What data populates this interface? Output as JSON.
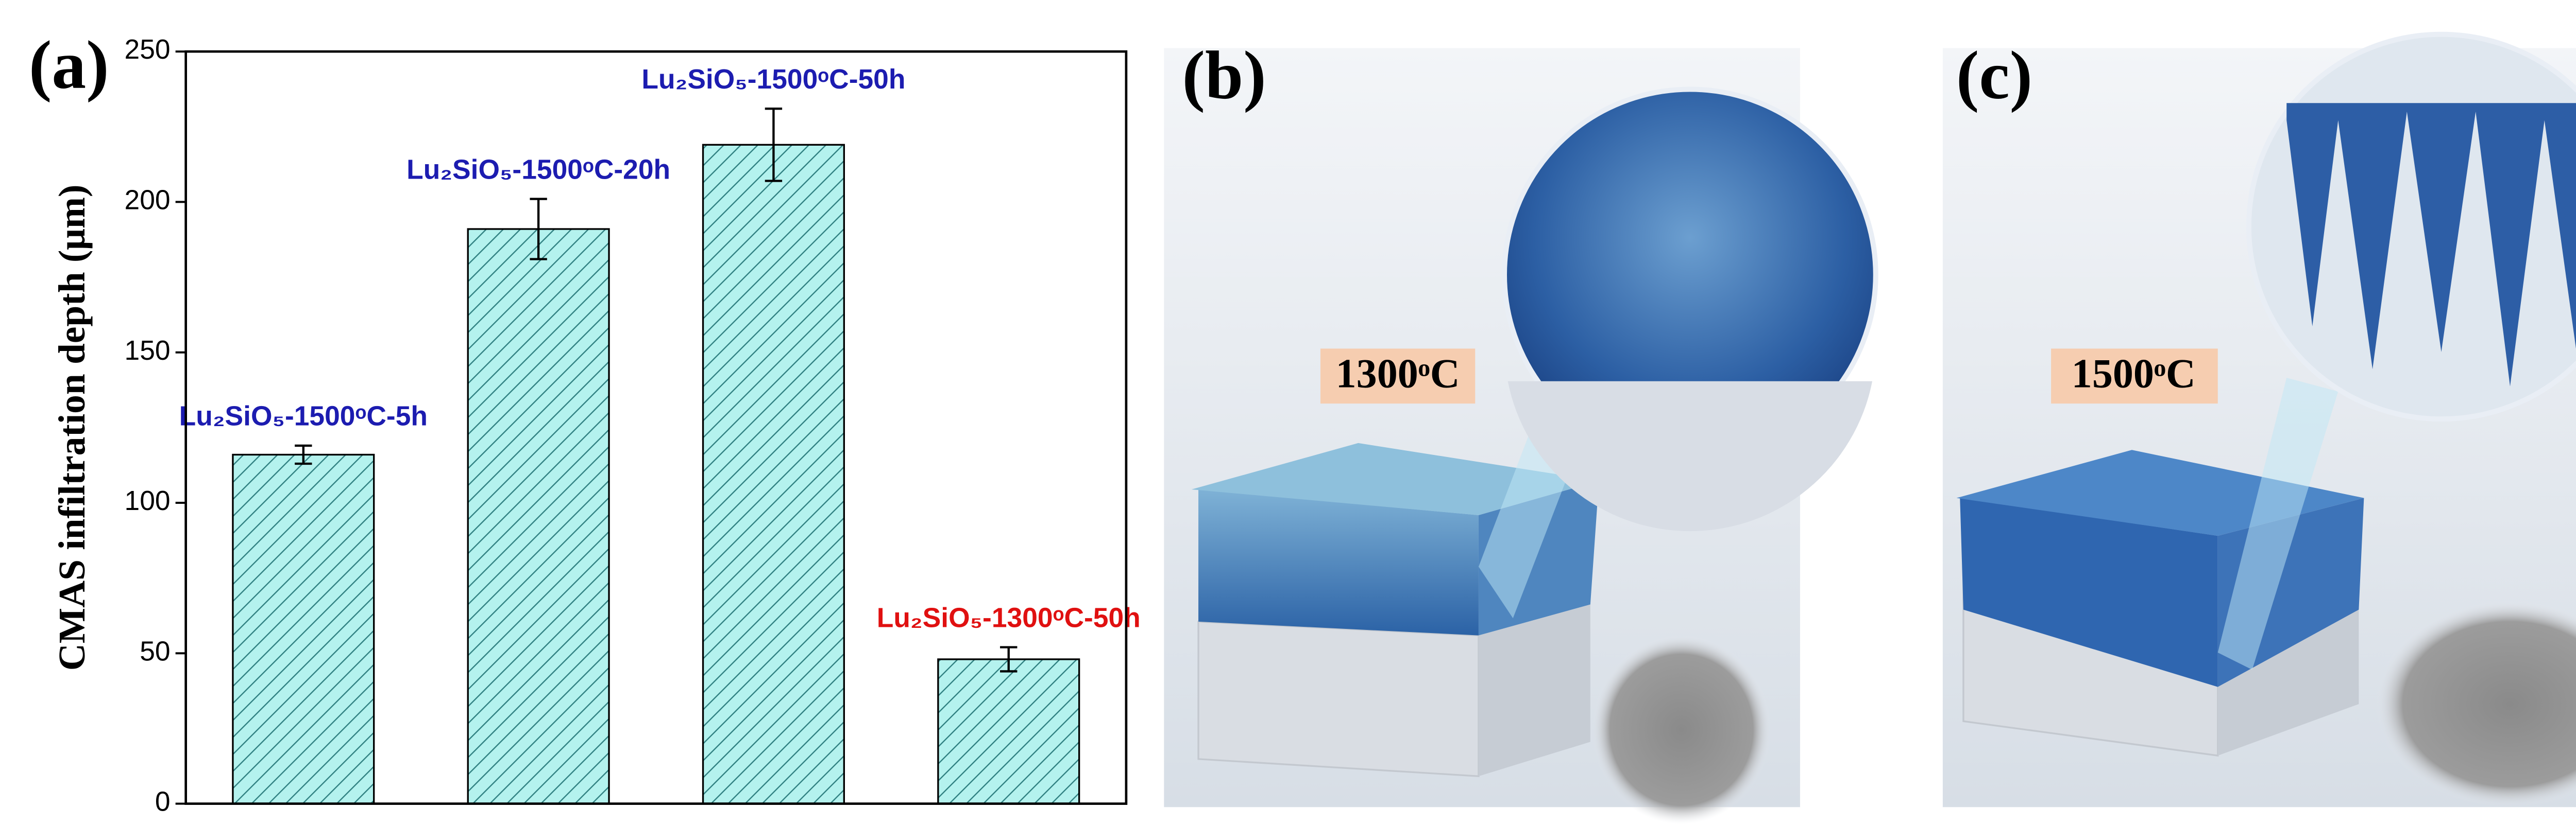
{
  "chart_data": {
    "type": "bar",
    "panel_label": "(a)",
    "ylabel": "CMAS infiltration depth (μm)",
    "categories": [
      "Lu₂SiO₅-1500ᵒC-5h",
      "Lu₂SiO₅-1500ᵒC-20h",
      "Lu₂SiO₅-1500ᵒC-50h",
      "Lu₂SiO₅-1300ᵒC-50h"
    ],
    "category_colors": [
      "#1c1cb0",
      "#1c1cb0",
      "#1c1cb0",
      "#e01010"
    ],
    "values": [
      116,
      191,
      219,
      48
    ],
    "errors": [
      3,
      10,
      12,
      4
    ],
    "color": "#b4f2ee",
    "hatch_color": "#2e7f80",
    "ylim": [
      0,
      250
    ],
    "yticks": [
      0,
      50,
      100,
      150,
      200,
      250
    ]
  },
  "panels": [
    {
      "label": "(b)",
      "temperature": "1300ᵒC"
    },
    {
      "label": "(c)",
      "temperature": "1500ᵒC"
    }
  ]
}
